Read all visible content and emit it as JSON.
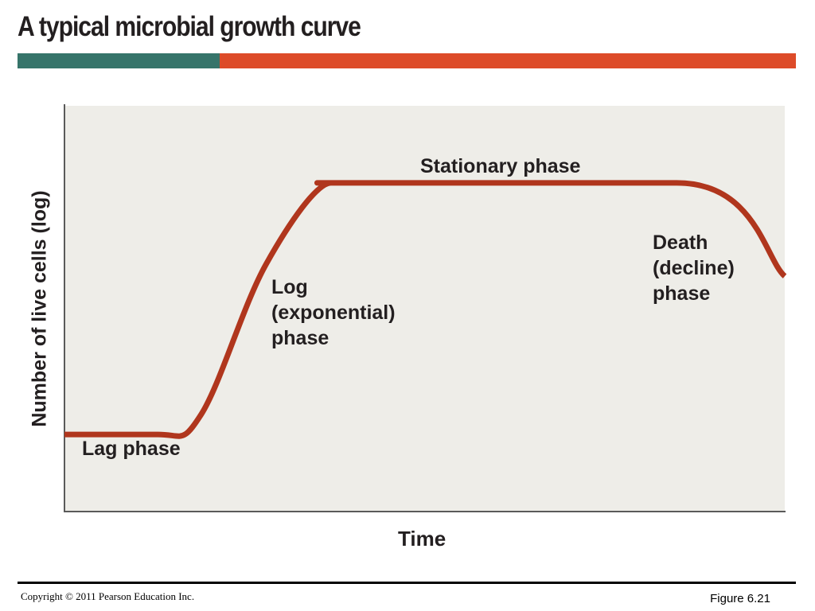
{
  "slide": {
    "title": "A typical microbial growth curve",
    "copyright": "Copyright © 2011 Pearson Education Inc.",
    "figure_ref": "Figure 6.21"
  },
  "colors": {
    "title_bar_left": "#36746a",
    "title_bar_right": "#dd4b29",
    "plot_background": "#eeede8",
    "curve": "#b0361d",
    "axis": "#5a5a5a"
  },
  "chart_data": {
    "type": "line",
    "title": "",
    "xlabel": "Time",
    "ylabel": "Number of live cells (log)",
    "grid": false,
    "xlim": [
      0,
      100
    ],
    "ylim": [
      0,
      100
    ],
    "series": [
      {
        "x": [
          0,
          13,
          19,
          28,
          37,
          39,
          85,
          100
        ],
        "y": [
          19,
          19,
          24,
          61,
          81,
          81,
          81,
          58
        ]
      }
    ],
    "annotations": [
      {
        "key": "lag",
        "lines": [
          "Lag phase"
        ]
      },
      {
        "key": "log",
        "lines": [
          "Log",
          "(exponential)",
          "phase"
        ]
      },
      {
        "key": "stationary",
        "lines": [
          "Stationary phase"
        ]
      },
      {
        "key": "death",
        "lines": [
          "Death",
          "(decline)",
          "phase"
        ]
      }
    ]
  }
}
